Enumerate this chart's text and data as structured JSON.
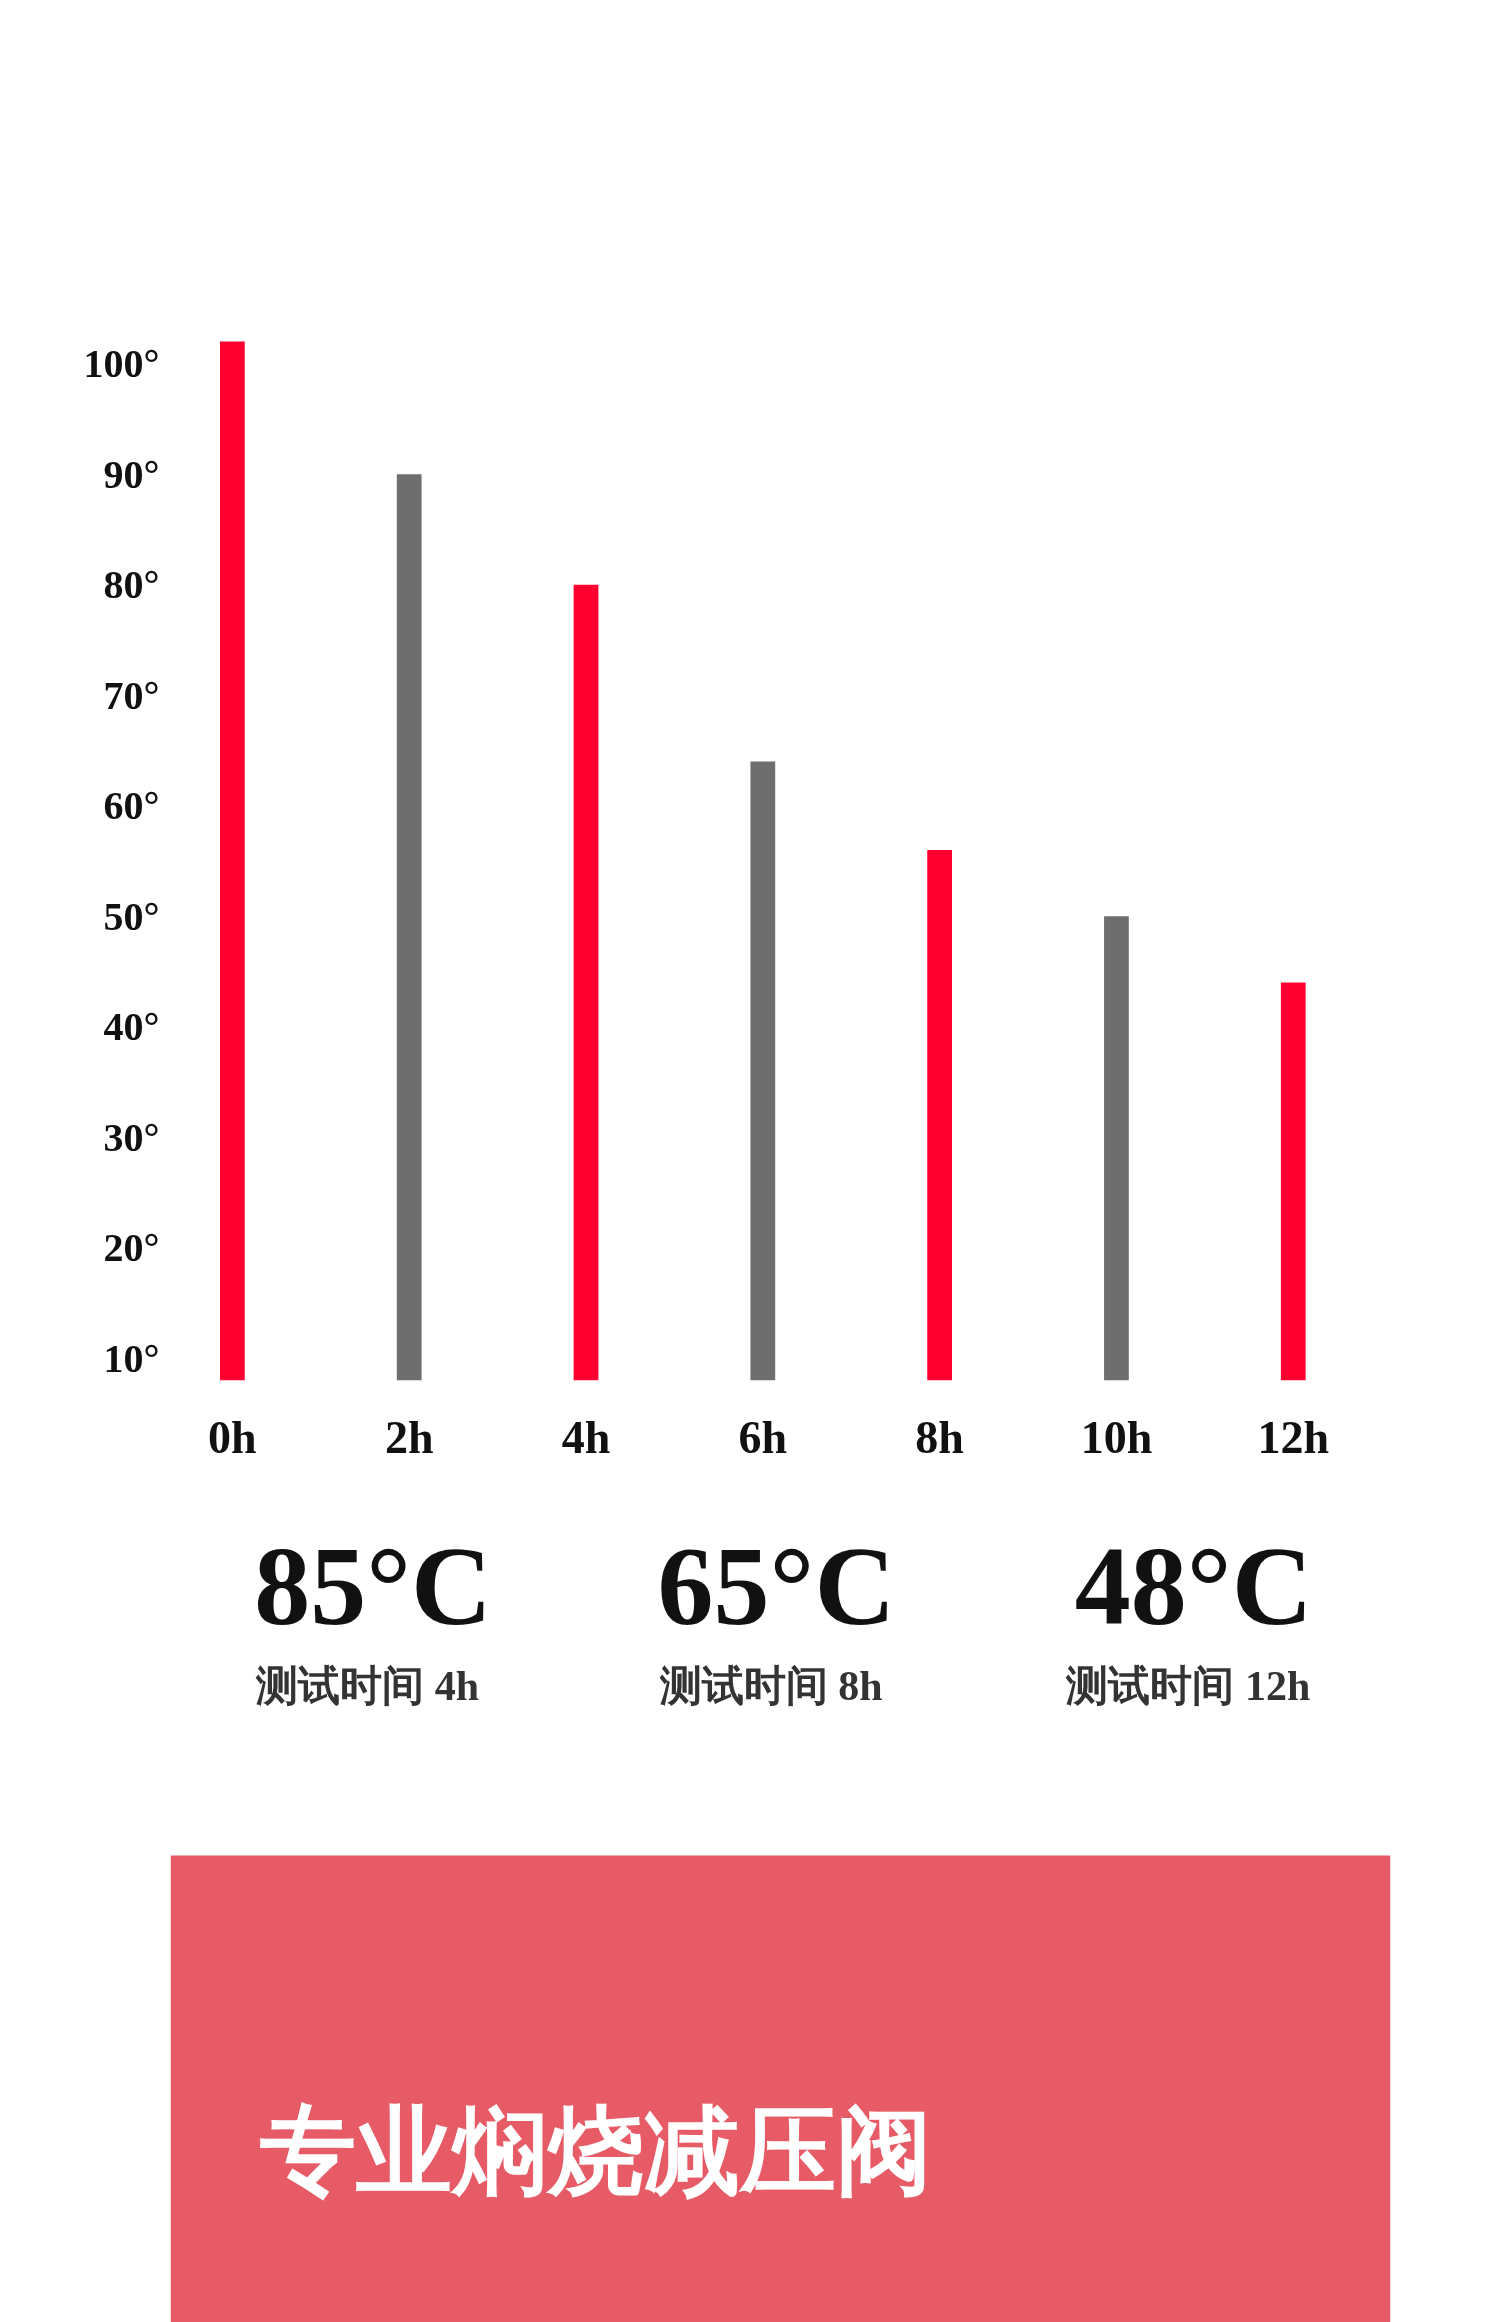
{
  "chart_data": {
    "type": "bar",
    "categories": [
      "0h",
      "2h",
      "4h",
      "6h",
      "8h",
      "10h",
      "12h"
    ],
    "values": [
      102,
      90,
      80,
      64,
      56,
      50,
      44
    ],
    "colors": [
      "#ff0030",
      "#6e6e6e",
      "#ff0030",
      "#6e6e6e",
      "#ff0030",
      "#6e6e6e",
      "#ff0030"
    ],
    "ylim": [
      8,
      103
    ],
    "yticks": [
      {
        "value": 10,
        "label": "10°"
      },
      {
        "value": 20,
        "label": "20°"
      },
      {
        "value": 30,
        "label": "30°"
      },
      {
        "value": 40,
        "label": "40°"
      },
      {
        "value": 50,
        "label": "50°"
      },
      {
        "value": 60,
        "label": "60°"
      },
      {
        "value": 70,
        "label": "70°"
      },
      {
        "value": 80,
        "label": "80°"
      },
      {
        "value": 90,
        "label": "90°"
      },
      {
        "value": 100,
        "label": "100°"
      }
    ],
    "grid": false,
    "annotations": [
      "85°C",
      "测试时间  4h",
      "65°C",
      "测试时间  8h",
      "48°C",
      "测试时间  12h",
      "专业焖烧减压阀"
    ]
  }
}
